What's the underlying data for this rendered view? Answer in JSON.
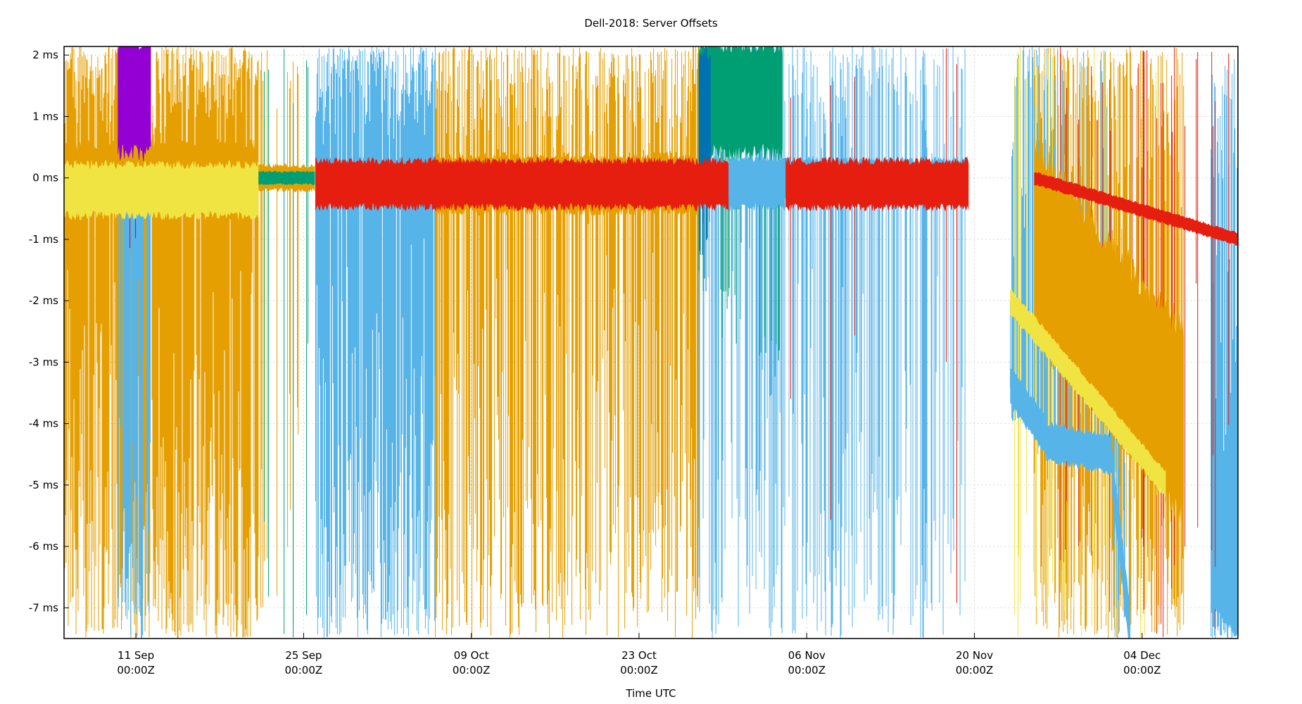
{
  "chart_data": {
    "type": "line",
    "title": "Dell-2018: Server Offsets",
    "xlabel": "Time UTC",
    "ylabel": "",
    "xlim": [
      "2018-09-05T00:00Z",
      "2018-12-12T00:00Z"
    ],
    "ylim": [
      -7.5,
      2.14
    ],
    "y_unit": "ms",
    "grid": true,
    "legend": "none",
    "x_ticks": [
      {
        "date": "2018-09-11",
        "label1": "11 Sep",
        "label2": "00:00Z"
      },
      {
        "date": "2018-09-25",
        "label1": "25 Sep",
        "label2": "00:00Z"
      },
      {
        "date": "2018-10-09",
        "label1": "09 Oct",
        "label2": "00:00Z"
      },
      {
        "date": "2018-10-23",
        "label1": "23 Oct",
        "label2": "00:00Z"
      },
      {
        "date": "2018-11-06",
        "label1": "06 Nov",
        "label2": "00:00Z"
      },
      {
        "date": "2018-11-20",
        "label1": "20 Nov",
        "label2": "00:00Z"
      },
      {
        "date": "2018-12-04",
        "label1": "04 Dec",
        "label2": "00:00Z"
      }
    ],
    "y_ticks": [
      {
        "value": 2,
        "label": "2 ms"
      },
      {
        "value": 1,
        "label": "1 ms"
      },
      {
        "value": 0,
        "label": "0 ms"
      },
      {
        "value": -1,
        "label": "-1 ms"
      },
      {
        "value": -2,
        "label": "-2 ms"
      },
      {
        "value": -3,
        "label": "-3 ms"
      },
      {
        "value": -4,
        "label": "-4 ms"
      },
      {
        "value": -5,
        "label": "-5 ms"
      },
      {
        "value": -6,
        "label": "-6 ms"
      },
      {
        "value": -7,
        "label": "-7 ms"
      }
    ],
    "colors": {
      "orange": "#e69f00",
      "skyblue": "#56b4e9",
      "red": "#e51e10",
      "yellow": "#f0e442",
      "purple": "#9400d3",
      "green": "#009e73",
      "blue": "#0072b2",
      "black": "#000000"
    },
    "series": [
      {
        "color": "#e69f00",
        "segments": [
          {
            "from": "2018-09-05",
            "to": "2018-09-21T06:00",
            "center": [
              0,
              0
            ],
            "spread": 0.55,
            "spike_range": [
              -7.5,
              2.14
            ],
            "spike_density": 0.95
          },
          {
            "from": "2018-09-21T06:00",
            "to": "2018-09-26",
            "center": [
              0,
              0
            ],
            "spread": 0.2,
            "spike_range": [
              -7.5,
              2.14
            ],
            "spike_density": 0.25
          },
          {
            "from": "2018-10-06",
            "to": "2018-10-28",
            "center": [
              -0.1,
              -0.1
            ],
            "spread": 0.45,
            "spike_range": [
              -7.5,
              2.14
            ],
            "spike_density": 0.7
          },
          {
            "from": "2018-11-25",
            "to": "2018-12-07T12:00",
            "center": [
              -1,
              -4
            ],
            "spread": 1.5,
            "spike_range": [
              -7.5,
              2.14
            ],
            "spike_density": 0.8
          }
        ]
      },
      {
        "color": "#56b4e9",
        "segments": [
          {
            "from": "2018-09-09T12:00",
            "to": "2018-09-12T06:00",
            "center": [
              -0.2,
              -0.2
            ],
            "spread": 0.2,
            "spike_range": [
              -7.5,
              2.14
            ],
            "spike_density": 0.8
          },
          {
            "from": "2018-09-26",
            "to": "2018-10-06",
            "center": [
              0,
              0
            ],
            "spread": 0.3,
            "spike_range": [
              -7.5,
              2.14
            ],
            "spike_density": 0.95
          },
          {
            "from": "2018-10-28",
            "to": "2018-11-19T12:00",
            "center": [
              0,
              0
            ],
            "spread": 0.3,
            "spike_range": [
              -7.5,
              2.14
            ],
            "spike_density": 0.45
          },
          {
            "from": "2018-11-23",
            "to": "2018-11-26",
            "center": [
              -3.4,
              -4.2
            ],
            "spread": 0.3,
            "spike_range": [
              -4,
              2.14
            ],
            "spike_density": 0.9
          },
          {
            "from": "2018-11-26",
            "to": "2018-12-01T12:00",
            "center": [
              -4.3,
              -4.5
            ],
            "spread": 0.3,
            "spike_range": [
              -4.5,
              2.14
            ],
            "spike_density": 0.3
          },
          {
            "from": "2018-12-01T12:00",
            "to": "2018-12-03",
            "center": [
              -4.8,
              -7.4
            ],
            "spread": 0.35,
            "spike_range": [
              -7.5,
              -4
            ],
            "spike_density": 0.4
          },
          {
            "from": "2018-12-09T18:00",
            "to": "2018-12-12",
            "center": [
              -6.6,
              -7.1
            ],
            "spread": 0.35,
            "spike_range": [
              -7.5,
              2.14
            ],
            "spike_density": 0.9
          }
        ]
      },
      {
        "color": "#f0e442",
        "segments": [
          {
            "from": "2018-09-05",
            "to": "2018-09-21T06:00",
            "center": [
              -0.2,
              -0.2
            ],
            "spread": 0.42,
            "spike_range": [
              -0.6,
              0.2
            ],
            "spike_density": 0
          },
          {
            "from": "2018-11-23",
            "to": "2018-12-06",
            "center": [
              -2,
              -5
            ],
            "spread": 0.2,
            "spike_range": [
              -7.5,
              2.14
            ],
            "spike_density": 0.1
          }
        ]
      },
      {
        "color": "#9400d3",
        "segments": [
          {
            "from": "2018-09-09T12:00",
            "to": "2018-09-12T06:00",
            "center": [
              1.3,
              1.3
            ],
            "spread": 0.9,
            "spike_range": [
              -1.2,
              2.14
            ],
            "spike_density": 0.1
          }
        ]
      },
      {
        "color": "#009e73",
        "segments": [
          {
            "from": "2018-10-28",
            "to": "2018-11-04",
            "center": [
              1.3,
              1.3
            ],
            "spread": 0.9,
            "spike_range": [
              -3,
              2.14
            ],
            "spike_density": 0.2
          },
          {
            "from": "2018-09-21T06:00",
            "to": "2018-09-26",
            "center": [
              0,
              0
            ],
            "spread": 0.1,
            "spike_range": [
              -7.5,
              2.14
            ],
            "spike_density": 0.1
          }
        ]
      },
      {
        "color": "#0072b2",
        "segments": [
          {
            "from": "2018-10-28",
            "to": "2018-10-29",
            "center": [
              1,
              1
            ],
            "spread": 1.1,
            "spike_range": [
              -2,
              2.14
            ],
            "spike_density": 0.3
          }
        ]
      },
      {
        "color": "#e51e10",
        "segments": [
          {
            "from": "2018-09-26",
            "to": "2018-10-30T12:00",
            "center": [
              -0.1,
              -0.1
            ],
            "spread": 0.38,
            "spike_range": [
              -0.5,
              0.3
            ],
            "spike_density": 0
          },
          {
            "from": "2018-11-04T06:00",
            "to": "2018-11-19T12:00",
            "center": [
              -0.1,
              -0.1
            ],
            "spread": 0.38,
            "spike_range": [
              -7.5,
              2.14
            ],
            "spike_density": 0.02
          },
          {
            "from": "2018-11-25",
            "to": "2018-12-12",
            "center": [
              0,
              -1
            ],
            "spread": 0.1,
            "spike_range": [
              -7.5,
              2.14
            ],
            "spike_density": 0.08
          }
        ]
      },
      {
        "color": "#56b4e9",
        "segments": [
          {
            "from": "2018-10-30T12:00",
            "to": "2018-11-04T06:00",
            "center": [
              -0.1,
              -0.1
            ],
            "spread": 0.38,
            "spike_range": [
              -0.5,
              0.3
            ],
            "spike_density": 0
          }
        ]
      }
    ]
  }
}
